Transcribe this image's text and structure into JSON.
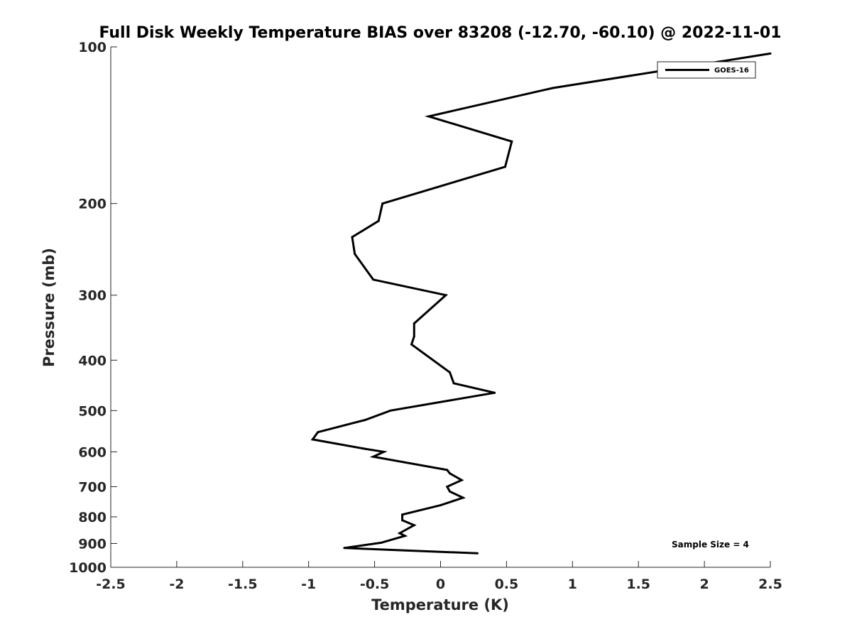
{
  "chart_data": {
    "type": "line",
    "title": "Full Disk Weekly Temperature BIAS over 83208 (-12.70, -60.10) @ 2022-11-01",
    "xlabel": "Temperature (K)",
    "ylabel": "Pressure (mb)",
    "xlim": [
      -2.5,
      2.5
    ],
    "ylim": [
      100,
      1000
    ],
    "y_scale": "log",
    "y_reversed": true,
    "grid": false,
    "x_ticks": [
      "-2.5",
      "-2",
      "-1.5",
      "-1",
      "-0.5",
      "0",
      "0.5",
      "1",
      "1.5",
      "2",
      "2.5"
    ],
    "y_ticks": [
      "100",
      "200",
      "300",
      "400",
      "500",
      "600",
      "700",
      "800",
      "900",
      "1000"
    ],
    "legend_position": "top-right",
    "series": [
      {
        "name": "GOES-16",
        "color": "#000000",
        "points": [
          {
            "x": 2.5,
            "y": 103
          },
          {
            "x": 0.85,
            "y": 120
          },
          {
            "x": -0.09,
            "y": 136
          },
          {
            "x": 0.54,
            "y": 152
          },
          {
            "x": 0.49,
            "y": 170
          },
          {
            "x": -0.44,
            "y": 200
          },
          {
            "x": -0.47,
            "y": 216
          },
          {
            "x": -0.67,
            "y": 232
          },
          {
            "x": -0.65,
            "y": 250
          },
          {
            "x": -0.51,
            "y": 280
          },
          {
            "x": 0.04,
            "y": 300
          },
          {
            "x": -0.2,
            "y": 340
          },
          {
            "x": -0.2,
            "y": 360
          },
          {
            "x": -0.22,
            "y": 373
          },
          {
            "x": 0.07,
            "y": 422
          },
          {
            "x": 0.1,
            "y": 443
          },
          {
            "x": 0.41,
            "y": 462
          },
          {
            "x": -0.38,
            "y": 500
          },
          {
            "x": -0.57,
            "y": 521
          },
          {
            "x": -0.93,
            "y": 550
          },
          {
            "x": -0.97,
            "y": 568
          },
          {
            "x": -0.59,
            "y": 591
          },
          {
            "x": -0.43,
            "y": 600
          },
          {
            "x": -0.51,
            "y": 613
          },
          {
            "x": 0.05,
            "y": 650
          },
          {
            "x": 0.07,
            "y": 660
          },
          {
            "x": 0.16,
            "y": 680
          },
          {
            "x": 0.05,
            "y": 700
          },
          {
            "x": 0.07,
            "y": 715
          },
          {
            "x": 0.17,
            "y": 735
          },
          {
            "x": 0,
            "y": 760
          },
          {
            "x": -0.29,
            "y": 792
          },
          {
            "x": -0.29,
            "y": 812
          },
          {
            "x": -0.2,
            "y": 830
          },
          {
            "x": -0.31,
            "y": 860
          },
          {
            "x": -0.27,
            "y": 870
          },
          {
            "x": -0.45,
            "y": 897
          },
          {
            "x": -0.73,
            "y": 918
          },
          {
            "x": 0.28,
            "y": 940
          }
        ]
      }
    ],
    "annotation": "Sample Size = 4"
  }
}
